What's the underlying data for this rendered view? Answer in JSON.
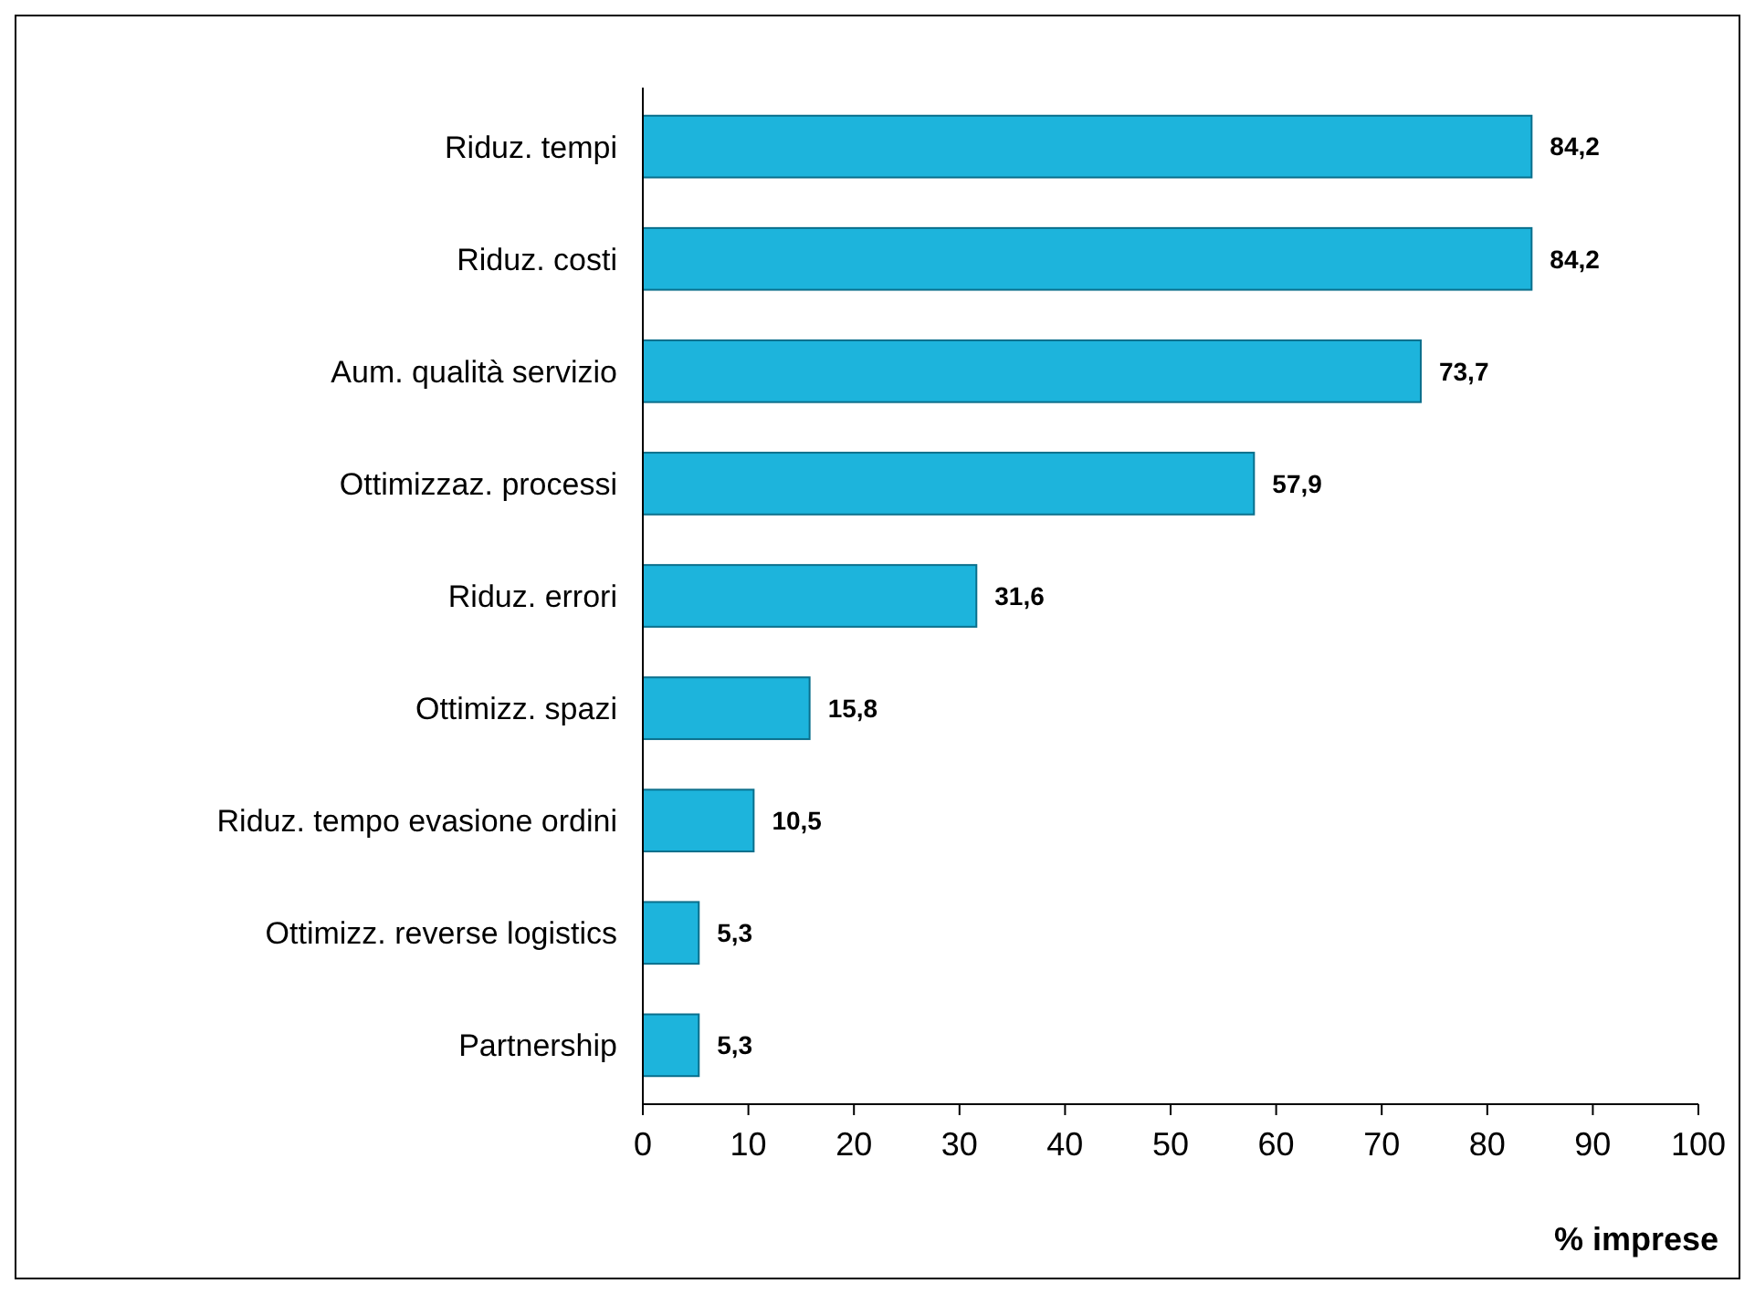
{
  "chart_data": {
    "type": "bar",
    "orientation": "horizontal",
    "xlabel": "% imprese",
    "categories": [
      "Riduz. tempi",
      "Riduz. costi",
      "Aum. qualità servizio",
      "Ottimizzaz. processi",
      "Riduz. errori",
      "Ottimizz. spazi",
      "Riduz. tempo evasione ordini",
      "Ottimizz. reverse logistics",
      "Partnership"
    ],
    "values": [
      84.2,
      84.2,
      73.7,
      57.9,
      31.6,
      15.8,
      10.5,
      5.3,
      5.3
    ],
    "value_labels": [
      "84,2",
      "84,2",
      "73,7",
      "57,9",
      "31,6",
      "15,8",
      "10,5",
      "5,3",
      "5,3"
    ],
    "color": "#1db4dc",
    "xlim": [
      0,
      100
    ],
    "xticks": [
      0,
      10,
      20,
      30,
      40,
      50,
      60,
      70,
      80,
      90,
      100
    ],
    "grid": false
  }
}
